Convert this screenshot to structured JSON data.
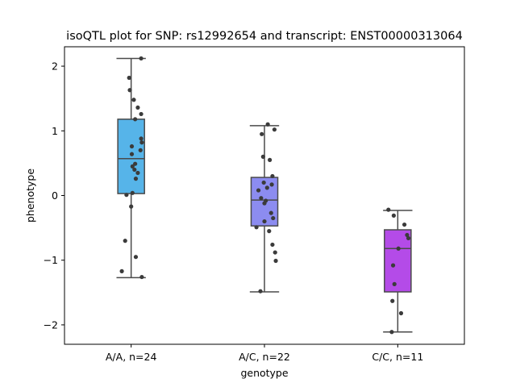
{
  "chart_data": {
    "type": "box",
    "title": "isoQTL plot for SNP: rs12992654 and transcript: ENST00000313064",
    "xlabel": "genotype",
    "ylabel": "phenotype",
    "ylim": [
      -2.3,
      2.3
    ],
    "yticks": [
      -2,
      -1,
      0,
      1,
      2
    ],
    "grid": false,
    "categories": [
      "A/A, n=24",
      "A/C, n=22",
      "C/C, n=11"
    ],
    "colors": [
      "#56b4e9",
      "#8c8cf0",
      "#b44be8"
    ],
    "boxes": [
      {
        "q1": 0.03,
        "median": 0.57,
        "q3": 1.18,
        "whisker_low": -1.27,
        "whisker_high": 2.12
      },
      {
        "q1": -0.47,
        "median": -0.07,
        "q3": 0.28,
        "whisker_low": -1.49,
        "whisker_high": 1.08
      },
      {
        "q1": -1.49,
        "median": -0.82,
        "q3": -0.53,
        "whisker_low": -2.11,
        "whisker_high": -0.23
      }
    ],
    "points": [
      [
        {
          "x": 0.15,
          "y": 2.12
        },
        {
          "x": -0.03,
          "y": 1.82
        },
        {
          "x": -0.02,
          "y": 1.63
        },
        {
          "x": 0.04,
          "y": 1.48
        },
        {
          "x": 0.1,
          "y": 1.36
        },
        {
          "x": 0.15,
          "y": 1.26
        },
        {
          "x": 0.06,
          "y": 1.18
        },
        {
          "x": 0.15,
          "y": 0.88
        },
        {
          "x": 0.16,
          "y": 0.82
        },
        {
          "x": 0.01,
          "y": 0.76
        },
        {
          "x": 0.14,
          "y": 0.7
        },
        {
          "x": 0.01,
          "y": 0.64
        },
        {
          "x": 0.06,
          "y": 0.49
        },
        {
          "x": 0.02,
          "y": 0.45
        },
        {
          "x": 0.05,
          "y": 0.4
        },
        {
          "x": 0.1,
          "y": 0.35
        },
        {
          "x": 0.07,
          "y": 0.26
        },
        {
          "x": 0.02,
          "y": 0.04
        },
        {
          "x": -0.07,
          "y": 0.01
        },
        {
          "x": 0.0,
          "y": -0.17
        },
        {
          "x": -0.09,
          "y": -0.7
        },
        {
          "x": 0.07,
          "y": -0.95
        },
        {
          "x": -0.14,
          "y": -1.17
        },
        {
          "x": 0.16,
          "y": -1.26
        }
      ],
      [
        {
          "x": 0.05,
          "y": 1.1
        },
        {
          "x": 0.15,
          "y": 1.02
        },
        {
          "x": -0.04,
          "y": 0.95
        },
        {
          "x": -0.02,
          "y": 0.6
        },
        {
          "x": 0.08,
          "y": 0.55
        },
        {
          "x": 0.12,
          "y": 0.3
        },
        {
          "x": -0.01,
          "y": 0.2
        },
        {
          "x": 0.11,
          "y": 0.17
        },
        {
          "x": 0.04,
          "y": 0.12
        },
        {
          "x": -0.09,
          "y": 0.08
        },
        {
          "x": -0.05,
          "y": -0.04
        },
        {
          "x": 0.0,
          "y": -0.12
        },
        {
          "x": 0.02,
          "y": -0.08
        },
        {
          "x": 0.1,
          "y": -0.27
        },
        {
          "x": 0.13,
          "y": -0.35
        },
        {
          "x": 0.0,
          "y": -0.4
        },
        {
          "x": -0.12,
          "y": -0.49
        },
        {
          "x": 0.07,
          "y": -0.55
        },
        {
          "x": 0.12,
          "y": -0.76
        },
        {
          "x": 0.16,
          "y": -0.88
        },
        {
          "x": 0.17,
          "y": -1.01
        },
        {
          "x": -0.06,
          "y": -1.48
        }
      ],
      [
        {
          "x": -0.14,
          "y": -0.22
        },
        {
          "x": -0.06,
          "y": -0.31
        },
        {
          "x": 0.1,
          "y": -0.45
        },
        {
          "x": 0.14,
          "y": -0.61
        },
        {
          "x": 0.16,
          "y": -0.66
        },
        {
          "x": 0.01,
          "y": -0.82
        },
        {
          "x": -0.07,
          "y": -1.08
        },
        {
          "x": -0.05,
          "y": -1.37
        },
        {
          "x": -0.08,
          "y": -1.63
        },
        {
          "x": 0.05,
          "y": -1.82
        },
        {
          "x": -0.09,
          "y": -2.11
        }
      ]
    ]
  }
}
